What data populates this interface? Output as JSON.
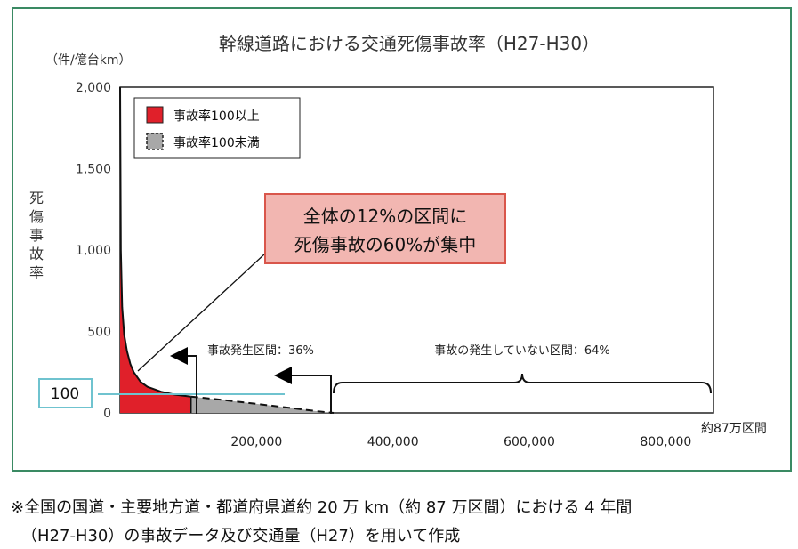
{
  "chart_data": {
    "type": "area",
    "title": "幹線道路における交通死傷事故率（H27-H30）",
    "y_unit": "（件/億台km）",
    "ylabel": "死傷事故率",
    "x_unit": "約87万区間",
    "xlim": [
      0,
      870000
    ],
    "ylim": [
      0,
      2000
    ],
    "xticks": [
      "200,000",
      "400,000",
      "600,000",
      "800,000"
    ],
    "yticks": [
      "0",
      "500",
      "1,000",
      "1,500",
      "2,000"
    ],
    "threshold": {
      "value": 100,
      "label": "100"
    },
    "legend": {
      "placement": "top-left",
      "entries": [
        {
          "name": "事故率100以上",
          "color": "#e0202a"
        },
        {
          "name": "事故率100未満",
          "color": "#a8a8a8"
        }
      ]
    },
    "series": [
      {
        "name": "事故率100以上",
        "x": [
          0,
          1000,
          3000,
          6000,
          10000,
          15000,
          20000,
          30000,
          40000,
          60000,
          80000,
          104000
        ],
        "y": [
          2000,
          1000,
          650,
          480,
          380,
          300,
          250,
          190,
          160,
          130,
          112,
          100
        ]
      },
      {
        "name": "事故率100未満",
        "x": [
          104000,
          150000,
          200000,
          250000,
          290000,
          313000
        ],
        "y": [
          100,
          80,
          55,
          30,
          10,
          0
        ]
      }
    ],
    "callout": {
      "line1": "全体の12%の区間に",
      "line2": "死傷事故の60%が集中"
    },
    "annotations": {
      "occurred": "事故発生区間：36%",
      "not_occurred": "事故の発生していない区間：64%"
    }
  },
  "footnote": {
    "line1": "※全国の国道・主要地方道・都道府県道約 20 万 km（約 87 万区間）における 4 年間",
    "line2": "（H27-H30）の事故データ及び交通量（H27）を用いて作成"
  },
  "colors": {
    "frame": "#3a8a63",
    "red": "#e0202a",
    "gray": "#a8a8a8",
    "callout_bg": "#f2b6b1",
    "callout_border": "#d9564b",
    "threshold_line": "#6fc3cf"
  }
}
